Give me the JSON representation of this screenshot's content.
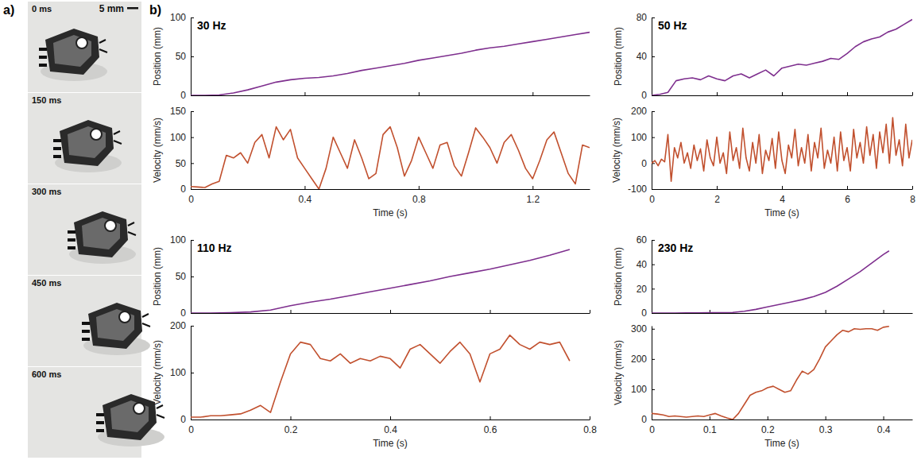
{
  "panel_labels": [
    "a)",
    "b)"
  ],
  "photo": {
    "frames": [
      "0 ms",
      "150 ms",
      "300 ms",
      "450 ms",
      "600 ms"
    ],
    "scale_bar": "5 mm"
  },
  "chart_data": [
    {
      "type": "line",
      "title": "30 Hz",
      "ylabel": "Position (mm)",
      "color": "#7e2f8e",
      "tick_labels": "y",
      "xlim": [
        0,
        1.4
      ],
      "xticks": [
        0,
        0.4,
        0.8,
        1.2
      ],
      "ylim": [
        0,
        100
      ],
      "yticks": [
        0,
        50,
        100
      ],
      "x": [
        0,
        0.05,
        0.1,
        0.15,
        0.2,
        0.25,
        0.3,
        0.35,
        0.4,
        0.45,
        0.5,
        0.55,
        0.6,
        0.65,
        0.7,
        0.75,
        0.8,
        0.85,
        0.9,
        0.95,
        1,
        1.05,
        1.1,
        1.15,
        1.2,
        1.25,
        1.3,
        1.35,
        1.4
      ],
      "values": [
        0,
        0,
        0.5,
        3,
        7,
        12,
        17,
        20,
        22,
        23,
        25,
        28,
        32,
        35,
        38,
        41,
        45,
        48,
        51,
        54,
        58,
        61,
        63,
        66,
        69,
        72,
        75,
        78,
        81
      ]
    },
    {
      "type": "line",
      "ylabel": "Velocity (mm/s)",
      "xlabel": "Time (s)",
      "color": "#c1502e",
      "xlim": [
        0,
        1.4
      ],
      "xticks": [
        0,
        0.4,
        0.8,
        1.2
      ],
      "ylim": [
        0,
        150
      ],
      "yticks": [
        0,
        50,
        100,
        150
      ],
      "x": [
        0,
        0.025,
        0.05,
        0.075,
        0.1,
        0.125,
        0.15,
        0.175,
        0.2,
        0.225,
        0.25,
        0.275,
        0.3,
        0.325,
        0.35,
        0.375,
        0.4,
        0.425,
        0.45,
        0.475,
        0.5,
        0.525,
        0.55,
        0.575,
        0.6,
        0.625,
        0.65,
        0.675,
        0.7,
        0.725,
        0.75,
        0.775,
        0.8,
        0.825,
        0.85,
        0.875,
        0.9,
        0.925,
        0.95,
        0.975,
        1,
        1.025,
        1.05,
        1.075,
        1.1,
        1.125,
        1.15,
        1.175,
        1.2,
        1.225,
        1.25,
        1.275,
        1.3,
        1.325,
        1.35,
        1.375,
        1.4
      ],
      "values": [
        5,
        4,
        3,
        10,
        15,
        65,
        60,
        70,
        50,
        90,
        105,
        60,
        120,
        95,
        115,
        60,
        40,
        20,
        0,
        40,
        100,
        70,
        40,
        95,
        60,
        20,
        30,
        105,
        120,
        80,
        25,
        55,
        100,
        70,
        40,
        85,
        90,
        45,
        25,
        70,
        118,
        100,
        80,
        50,
        90,
        105,
        75,
        40,
        20,
        55,
        95,
        110,
        70,
        30,
        10,
        85,
        80
      ]
    },
    {
      "type": "line",
      "title": "50 Hz",
      "ylabel": "Position (mm)",
      "color": "#7e2f8e",
      "tick_labels": "y",
      "xlim": [
        0,
        8
      ],
      "xticks": [
        0,
        2,
        4,
        6,
        8
      ],
      "ylim": [
        0,
        80
      ],
      "yticks": [
        0,
        40,
        80
      ],
      "x": [
        0,
        0.25,
        0.5,
        0.75,
        1,
        1.25,
        1.5,
        1.75,
        2,
        2.25,
        2.5,
        2.75,
        3,
        3.25,
        3.5,
        3.75,
        4,
        4.25,
        4.5,
        4.75,
        5,
        5.25,
        5.5,
        5.75,
        6,
        6.25,
        6.5,
        6.75,
        7,
        7.25,
        7.5,
        7.75,
        8
      ],
      "values": [
        0,
        1,
        3,
        15,
        17,
        18,
        16,
        20,
        17,
        15,
        20,
        22,
        18,
        22,
        26,
        20,
        28,
        30,
        32,
        31,
        33,
        35,
        38,
        37,
        43,
        50,
        55,
        58,
        60,
        65,
        68,
        73,
        78
      ]
    },
    {
      "type": "line",
      "ylabel": "Velocity (mm/s)",
      "xlabel": "Time (s)",
      "color": "#c1502e",
      "xlim": [
        0,
        8
      ],
      "xticks": [
        0,
        2,
        4,
        6,
        8
      ],
      "ylim": [
        -100,
        200
      ],
      "yticks": [
        -100,
        0,
        100,
        200
      ],
      "x": [
        0,
        0.1,
        0.2,
        0.3,
        0.4,
        0.5,
        0.6,
        0.7,
        0.8,
        0.9,
        1,
        1.1,
        1.2,
        1.3,
        1.4,
        1.5,
        1.6,
        1.7,
        1.8,
        1.9,
        2,
        2.1,
        2.2,
        2.3,
        2.4,
        2.5,
        2.6,
        2.7,
        2.8,
        2.9,
        3,
        3.1,
        3.2,
        3.3,
        3.4,
        3.5,
        3.6,
        3.7,
        3.8,
        3.9,
        4,
        4.1,
        4.2,
        4.3,
        4.4,
        4.5,
        4.6,
        4.7,
        4.8,
        4.9,
        5,
        5.1,
        5.2,
        5.3,
        5.4,
        5.5,
        5.6,
        5.7,
        5.8,
        5.9,
        6,
        6.1,
        6.2,
        6.3,
        6.4,
        6.5,
        6.6,
        6.7,
        6.8,
        6.9,
        7,
        7.1,
        7.2,
        7.3,
        7.4,
        7.5,
        7.6,
        7.7,
        7.8,
        7.9,
        8
      ],
      "values": [
        0,
        10,
        -10,
        15,
        5,
        110,
        -70,
        60,
        20,
        80,
        0,
        40,
        -20,
        70,
        10,
        55,
        -30,
        90,
        20,
        -10,
        100,
        0,
        40,
        -40,
        120,
        10,
        60,
        -20,
        135,
        20,
        -30,
        80,
        0,
        110,
        -40,
        50,
        10,
        95,
        -20,
        120,
        10,
        -40,
        70,
        20,
        130,
        -10,
        60,
        0,
        110,
        -30,
        80,
        20,
        135,
        -20,
        50,
        0,
        100,
        -30,
        120,
        10,
        60,
        -30,
        130,
        20,
        80,
        0,
        140,
        30,
        110,
        -20,
        120,
        40,
        150,
        0,
        175,
        30,
        90,
        -10,
        150,
        20,
        90
      ]
    },
    {
      "type": "line",
      "title": "110 Hz",
      "ylabel": "Position (mm)",
      "color": "#7e2f8e",
      "tick_labels": "y",
      "xlim": [
        0,
        0.8
      ],
      "xticks": [
        0,
        0.2,
        0.4,
        0.6,
        0.8
      ],
      "ylim": [
        0,
        100
      ],
      "yticks": [
        0,
        50,
        100
      ],
      "x": [
        0,
        0.04,
        0.08,
        0.12,
        0.16,
        0.2,
        0.24,
        0.28,
        0.32,
        0.36,
        0.4,
        0.44,
        0.48,
        0.52,
        0.56,
        0.6,
        0.64,
        0.68,
        0.72,
        0.76
      ],
      "values": [
        0,
        0,
        0.5,
        1.5,
        4,
        10,
        15,
        19,
        24,
        29,
        34,
        39,
        44,
        50,
        55,
        60,
        66,
        72,
        79,
        87
      ]
    },
    {
      "type": "line",
      "ylabel": "Velocity (mm/s)",
      "xlabel": "Time (s)",
      "color": "#c1502e",
      "xlim": [
        0,
        0.8
      ],
      "xticks": [
        0,
        0.2,
        0.4,
        0.6,
        0.8
      ],
      "ylim": [
        0,
        200
      ],
      "yticks": [
        0,
        100,
        200
      ],
      "x": [
        0,
        0.02,
        0.04,
        0.06,
        0.08,
        0.1,
        0.12,
        0.14,
        0.16,
        0.18,
        0.2,
        0.22,
        0.24,
        0.26,
        0.28,
        0.3,
        0.32,
        0.34,
        0.36,
        0.38,
        0.4,
        0.42,
        0.44,
        0.46,
        0.48,
        0.5,
        0.52,
        0.54,
        0.56,
        0.58,
        0.6,
        0.62,
        0.64,
        0.66,
        0.68,
        0.7,
        0.72,
        0.74,
        0.76
      ],
      "values": [
        5,
        5,
        8,
        8,
        10,
        12,
        20,
        30,
        15,
        80,
        140,
        165,
        160,
        130,
        125,
        140,
        120,
        130,
        125,
        135,
        130,
        110,
        150,
        160,
        140,
        120,
        145,
        165,
        140,
        80,
        140,
        150,
        180,
        160,
        150,
        165,
        160,
        165,
        125
      ]
    },
    {
      "type": "line",
      "title": "230 Hz",
      "ylabel": "Position (mm)",
      "color": "#7e2f8e",
      "tick_labels": "y",
      "xlim": [
        0,
        0.45
      ],
      "xticks": [
        0,
        0.1,
        0.2,
        0.3,
        0.4
      ],
      "ylim": [
        0,
        60
      ],
      "yticks": [
        0,
        20,
        40,
        60
      ],
      "x": [
        0,
        0.02,
        0.04,
        0.06,
        0.08,
        0.1,
        0.12,
        0.14,
        0.16,
        0.18,
        0.2,
        0.22,
        0.24,
        0.26,
        0.28,
        0.3,
        0.32,
        0.34,
        0.36,
        0.38,
        0.4,
        0.41
      ],
      "values": [
        0,
        0,
        0,
        0.1,
        0.2,
        0.3,
        0.3,
        0.5,
        1.5,
        3,
        5,
        7,
        9,
        11,
        13.5,
        17,
        22,
        28,
        34,
        41,
        48,
        51
      ]
    },
    {
      "type": "line",
      "ylabel": "Velocity (mm/s)",
      "xlabel": "Time (s)",
      "color": "#c1502e",
      "xlim": [
        0,
        0.45
      ],
      "xticks": [
        0,
        0.1,
        0.2,
        0.3,
        0.4
      ],
      "ylim": [
        0,
        310
      ],
      "yticks": [
        0,
        100,
        200,
        300
      ],
      "x": [
        0,
        0.01,
        0.02,
        0.03,
        0.04,
        0.05,
        0.06,
        0.07,
        0.08,
        0.09,
        0.1,
        0.11,
        0.12,
        0.13,
        0.14,
        0.15,
        0.16,
        0.17,
        0.18,
        0.19,
        0.2,
        0.21,
        0.22,
        0.23,
        0.24,
        0.25,
        0.26,
        0.27,
        0.28,
        0.29,
        0.3,
        0.31,
        0.32,
        0.33,
        0.34,
        0.35,
        0.36,
        0.37,
        0.38,
        0.39,
        0.4,
        0.41
      ],
      "values": [
        20,
        18,
        15,
        10,
        12,
        10,
        8,
        10,
        12,
        10,
        15,
        20,
        12,
        5,
        0,
        20,
        50,
        80,
        90,
        95,
        105,
        110,
        100,
        90,
        95,
        130,
        160,
        150,
        165,
        200,
        240,
        260,
        280,
        295,
        290,
        300,
        298,
        300,
        300,
        295,
        305,
        308
      ]
    }
  ]
}
